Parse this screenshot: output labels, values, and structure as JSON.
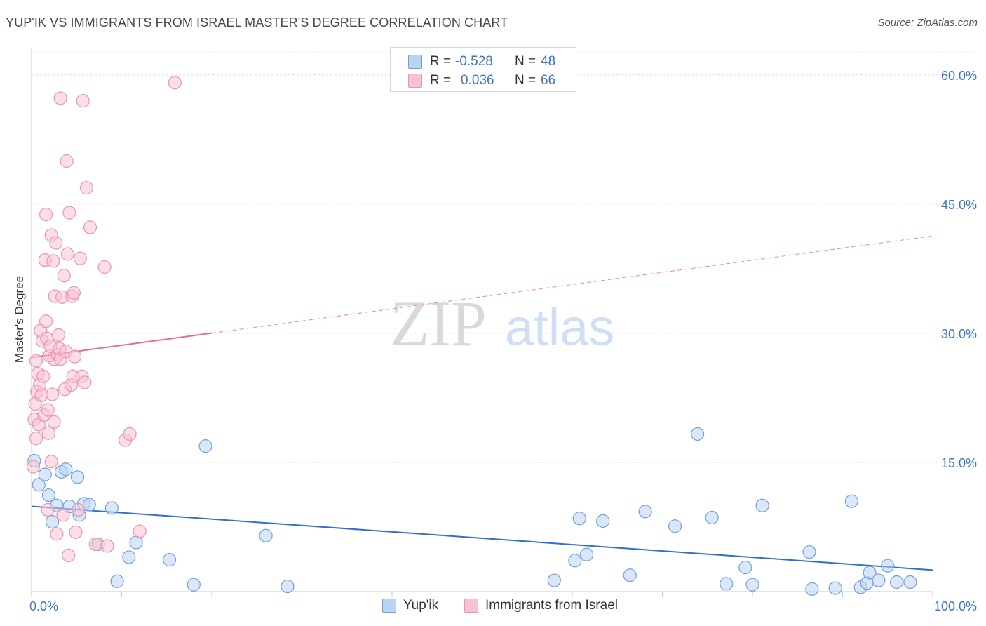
{
  "title": "YUP'IK VS IMMIGRANTS FROM ISRAEL MASTER'S DEGREE CORRELATION CHART",
  "source": "Source: ZipAtlas.com",
  "watermark": {
    "zip": "ZIP",
    "atlas": "atlas"
  },
  "legend": {
    "rows": [
      {
        "r_label": "R =",
        "r_value": "-0.528",
        "n_label": "N =",
        "n_value": "48"
      },
      {
        "r_label": "R =",
        "r_value": "0.036",
        "n_label": "N =",
        "n_value": "66"
      }
    ]
  },
  "bottom_legend": [
    "Yup'ik",
    "Immigrants from Israel"
  ],
  "colors": {
    "blue_fill": "#b9d3f2",
    "blue_stroke": "#6fa0dd",
    "blue_line": "#2f6fd0",
    "pink_fill": "#f7c3d2",
    "pink_stroke": "#ec93b0",
    "pink_line": "#e86b97",
    "axis_text": "#3d74c8",
    "grid": "#dedede"
  },
  "chart_data": {
    "type": "scatter",
    "title": "YUP'IK VS IMMIGRANTS FROM ISRAEL MASTER'S DEGREE CORRELATION CHART",
    "xlabel": "",
    "ylabel": "Master's Degree",
    "xlim": [
      0,
      100
    ],
    "ylim": [
      0,
      63
    ],
    "x_tick_labels": [
      {
        "value": 0,
        "label": "0.0%"
      },
      {
        "value": 100,
        "label": "100.0%"
      }
    ],
    "y_tick_labels": [
      {
        "value": 15,
        "label": "15.0%"
      },
      {
        "value": 30,
        "label": "30.0%"
      },
      {
        "value": 45,
        "label": "45.0%"
      },
      {
        "value": 60,
        "label": "60.0%"
      }
    ],
    "series": [
      {
        "name": "Yup'ik",
        "r": -0.528,
        "n": 48,
        "trend": {
          "x": [
            0,
            100
          ],
          "y": [
            9.9,
            2.5
          ],
          "dashed_from": null
        },
        "points": [
          {
            "x": 0.3,
            "y": 15.2
          },
          {
            "x": 0.8,
            "y": 12.4
          },
          {
            "x": 1.5,
            "y": 13.6
          },
          {
            "x": 1.9,
            "y": 11.2
          },
          {
            "x": 2.3,
            "y": 8.1
          },
          {
            "x": 2.8,
            "y": 10.0
          },
          {
            "x": 3.3,
            "y": 13.9
          },
          {
            "x": 3.8,
            "y": 14.2
          },
          {
            "x": 4.2,
            "y": 9.9
          },
          {
            "x": 5.1,
            "y": 13.3
          },
          {
            "x": 5.3,
            "y": 8.9
          },
          {
            "x": 5.8,
            "y": 10.2
          },
          {
            "x": 6.4,
            "y": 10.1
          },
          {
            "x": 7.4,
            "y": 5.5
          },
          {
            "x": 8.9,
            "y": 9.7
          },
          {
            "x": 9.5,
            "y": 1.2
          },
          {
            "x": 10.8,
            "y": 4.0
          },
          {
            "x": 11.6,
            "y": 5.7
          },
          {
            "x": 15.3,
            "y": 3.7
          },
          {
            "x": 18.0,
            "y": 0.8
          },
          {
            "x": 19.3,
            "y": 16.9
          },
          {
            "x": 26.0,
            "y": 6.5
          },
          {
            "x": 28.4,
            "y": 0.6
          },
          {
            "x": 58.0,
            "y": 1.3
          },
          {
            "x": 60.3,
            "y": 3.6
          },
          {
            "x": 60.8,
            "y": 8.5
          },
          {
            "x": 61.6,
            "y": 4.3
          },
          {
            "x": 63.4,
            "y": 8.2
          },
          {
            "x": 66.4,
            "y": 1.9
          },
          {
            "x": 68.1,
            "y": 9.3
          },
          {
            "x": 71.4,
            "y": 7.6
          },
          {
            "x": 73.9,
            "y": 18.3
          },
          {
            "x": 75.5,
            "y": 8.6
          },
          {
            "x": 77.1,
            "y": 0.9
          },
          {
            "x": 79.2,
            "y": 2.8
          },
          {
            "x": 80.0,
            "y": 0.8
          },
          {
            "x": 81.1,
            "y": 10.0
          },
          {
            "x": 86.3,
            "y": 4.6
          },
          {
            "x": 86.6,
            "y": 0.3
          },
          {
            "x": 89.2,
            "y": 0.4
          },
          {
            "x": 91.0,
            "y": 10.5
          },
          {
            "x": 92.0,
            "y": 0.5
          },
          {
            "x": 92.7,
            "y": 1.0
          },
          {
            "x": 93.0,
            "y": 2.2
          },
          {
            "x": 94.0,
            "y": 1.3
          },
          {
            "x": 95.0,
            "y": 3.0
          },
          {
            "x": 96.0,
            "y": 1.1
          },
          {
            "x": 97.5,
            "y": 1.1
          }
        ]
      },
      {
        "name": "Immigrants from Israel",
        "r": 0.036,
        "n": 66,
        "trend": {
          "x": [
            0,
            100
          ],
          "y": [
            27.2,
            41.3
          ],
          "dashed_from": 20
        },
        "points": [
          {
            "x": 0.2,
            "y": 14.5
          },
          {
            "x": 0.3,
            "y": 20.0
          },
          {
            "x": 0.4,
            "y": 21.8
          },
          {
            "x": 0.5,
            "y": 26.8
          },
          {
            "x": 0.5,
            "y": 17.8
          },
          {
            "x": 0.6,
            "y": 23.2
          },
          {
            "x": 0.7,
            "y": 25.3
          },
          {
            "x": 0.8,
            "y": 19.4
          },
          {
            "x": 0.9,
            "y": 24.0
          },
          {
            "x": 1.0,
            "y": 30.3
          },
          {
            "x": 1.1,
            "y": 22.8
          },
          {
            "x": 1.2,
            "y": 29.1
          },
          {
            "x": 1.3,
            "y": 25.0
          },
          {
            "x": 1.4,
            "y": 20.5
          },
          {
            "x": 1.5,
            "y": 38.5
          },
          {
            "x": 1.6,
            "y": 31.4
          },
          {
            "x": 1.6,
            "y": 43.8
          },
          {
            "x": 1.7,
            "y": 29.4
          },
          {
            "x": 1.8,
            "y": 9.5
          },
          {
            "x": 1.8,
            "y": 21.1
          },
          {
            "x": 1.9,
            "y": 18.4
          },
          {
            "x": 2.0,
            "y": 27.4
          },
          {
            "x": 2.1,
            "y": 28.5
          },
          {
            "x": 2.2,
            "y": 15.1
          },
          {
            "x": 2.2,
            "y": 41.4
          },
          {
            "x": 2.3,
            "y": 22.9
          },
          {
            "x": 2.4,
            "y": 38.4
          },
          {
            "x": 2.5,
            "y": 19.7
          },
          {
            "x": 2.5,
            "y": 27.0
          },
          {
            "x": 2.6,
            "y": 34.3
          },
          {
            "x": 2.7,
            "y": 40.5
          },
          {
            "x": 2.8,
            "y": 6.7
          },
          {
            "x": 2.9,
            "y": 27.5
          },
          {
            "x": 3.0,
            "y": 29.8
          },
          {
            "x": 3.1,
            "y": 28.2
          },
          {
            "x": 3.2,
            "y": 27.0
          },
          {
            "x": 3.2,
            "y": 57.3
          },
          {
            "x": 3.4,
            "y": 34.2
          },
          {
            "x": 3.5,
            "y": 8.9
          },
          {
            "x": 3.6,
            "y": 36.7
          },
          {
            "x": 3.7,
            "y": 23.5
          },
          {
            "x": 3.8,
            "y": 27.9
          },
          {
            "x": 3.9,
            "y": 50.0
          },
          {
            "x": 4.0,
            "y": 39.2
          },
          {
            "x": 4.1,
            "y": 4.2
          },
          {
            "x": 4.2,
            "y": 44.0
          },
          {
            "x": 4.4,
            "y": 24.0
          },
          {
            "x": 4.5,
            "y": 34.3
          },
          {
            "x": 4.6,
            "y": 25.0
          },
          {
            "x": 4.7,
            "y": 34.7
          },
          {
            "x": 4.8,
            "y": 27.3
          },
          {
            "x": 4.9,
            "y": 6.9
          },
          {
            "x": 5.2,
            "y": 9.5
          },
          {
            "x": 5.4,
            "y": 38.7
          },
          {
            "x": 5.6,
            "y": 25.0
          },
          {
            "x": 5.7,
            "y": 57.0
          },
          {
            "x": 5.9,
            "y": 24.3
          },
          {
            "x": 6.1,
            "y": 46.9
          },
          {
            "x": 6.5,
            "y": 42.3
          },
          {
            "x": 7.1,
            "y": 5.5
          },
          {
            "x": 8.1,
            "y": 37.7
          },
          {
            "x": 8.4,
            "y": 5.3
          },
          {
            "x": 10.4,
            "y": 17.6
          },
          {
            "x": 10.9,
            "y": 18.3
          },
          {
            "x": 12.0,
            "y": 7.0
          },
          {
            "x": 15.9,
            "y": 59.1
          }
        ]
      }
    ]
  }
}
